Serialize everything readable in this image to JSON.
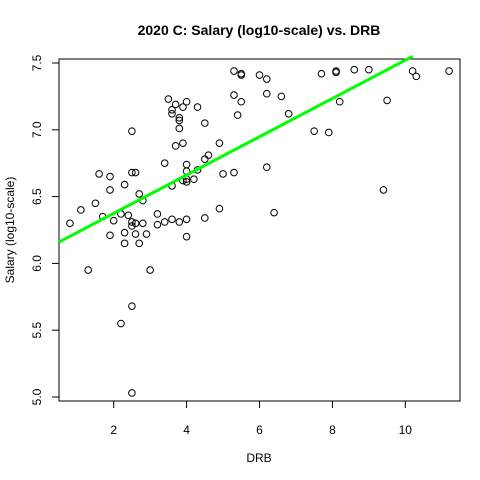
{
  "chart_data": {
    "type": "scatter",
    "title": "2020 C: Salary (log10-scale) vs. DRB",
    "xlabel": "DRB",
    "ylabel": "Salary (log10-scale)",
    "xlim": [
      0.5,
      11.5
    ],
    "ylim": [
      4.97,
      7.53
    ],
    "xticks": [
      "2",
      "4",
      "6",
      "8",
      "10"
    ],
    "yticks": [
      "5.0",
      "5.5",
      "6.0",
      "6.5",
      "7.0",
      "7.5"
    ],
    "grid": false,
    "legend": "none",
    "points": [
      [
        0.8,
        6.3
      ],
      [
        1.1,
        6.4
      ],
      [
        1.3,
        5.95
      ],
      [
        1.5,
        6.45
      ],
      [
        1.6,
        6.67
      ],
      [
        1.7,
        6.35
      ],
      [
        1.9,
        6.21
      ],
      [
        1.9,
        6.55
      ],
      [
        1.9,
        6.65
      ],
      [
        2.0,
        6.32
      ],
      [
        2.2,
        5.55
      ],
      [
        2.2,
        6.37
      ],
      [
        2.3,
        6.15
      ],
      [
        2.3,
        6.23
      ],
      [
        2.3,
        6.59
      ],
      [
        2.4,
        6.36
      ],
      [
        2.5,
        5.03
      ],
      [
        2.5,
        5.68
      ],
      [
        2.5,
        6.28
      ],
      [
        2.5,
        6.31
      ],
      [
        2.5,
        6.68
      ],
      [
        2.5,
        6.99
      ],
      [
        2.6,
        6.22
      ],
      [
        2.6,
        6.3
      ],
      [
        2.6,
        6.68
      ],
      [
        2.7,
        6.15
      ],
      [
        2.7,
        6.52
      ],
      [
        2.8,
        6.3
      ],
      [
        2.8,
        6.47
      ],
      [
        2.9,
        6.22
      ],
      [
        3.0,
        5.95
      ],
      [
        3.2,
        6.29
      ],
      [
        3.2,
        6.37
      ],
      [
        3.4,
        6.31
      ],
      [
        3.4,
        6.75
      ],
      [
        3.5,
        7.23
      ],
      [
        3.6,
        6.33
      ],
      [
        3.6,
        6.58
      ],
      [
        3.6,
        7.12
      ],
      [
        3.6,
        7.15
      ],
      [
        3.7,
        6.88
      ],
      [
        3.7,
        7.19
      ],
      [
        3.8,
        6.31
      ],
      [
        3.8,
        7.01
      ],
      [
        3.8,
        7.07
      ],
      [
        3.8,
        7.09
      ],
      [
        3.9,
        6.62
      ],
      [
        3.9,
        6.9
      ],
      [
        3.9,
        7.17
      ],
      [
        4.0,
        6.2
      ],
      [
        4.0,
        6.33
      ],
      [
        4.0,
        6.61
      ],
      [
        4.0,
        6.63
      ],
      [
        4.0,
        6.69
      ],
      [
        4.0,
        6.74
      ],
      [
        4.0,
        7.21
      ],
      [
        4.2,
        6.63
      ],
      [
        4.3,
        6.7
      ],
      [
        4.3,
        7.17
      ],
      [
        4.5,
        6.34
      ],
      [
        4.5,
        6.78
      ],
      [
        4.5,
        7.05
      ],
      [
        4.6,
        6.81
      ],
      [
        4.9,
        6.41
      ],
      [
        4.9,
        6.9
      ],
      [
        5.0,
        6.67
      ],
      [
        5.3,
        6.68
      ],
      [
        5.3,
        7.26
      ],
      [
        5.3,
        7.44
      ],
      [
        5.4,
        7.11
      ],
      [
        5.5,
        7.21
      ],
      [
        5.5,
        7.41
      ],
      [
        5.5,
        7.42
      ],
      [
        6.0,
        7.41
      ],
      [
        6.2,
        6.72
      ],
      [
        6.2,
        7.27
      ],
      [
        6.2,
        7.38
      ],
      [
        6.4,
        6.38
      ],
      [
        6.6,
        7.25
      ],
      [
        6.8,
        7.12
      ],
      [
        7.5,
        6.99
      ],
      [
        7.7,
        7.42
      ],
      [
        7.9,
        6.98
      ],
      [
        8.1,
        7.43
      ],
      [
        8.1,
        7.44
      ],
      [
        8.2,
        7.21
      ],
      [
        8.6,
        7.45
      ],
      [
        9.0,
        7.45
      ],
      [
        9.4,
        6.55
      ],
      [
        9.5,
        7.22
      ],
      [
        10.2,
        7.44
      ],
      [
        10.3,
        7.4
      ],
      [
        11.2,
        7.44
      ]
    ],
    "fit_line": {
      "x": [
        0.5,
        10.2
      ],
      "y": [
        6.16,
        7.55
      ],
      "color": "#00ff00"
    }
  }
}
